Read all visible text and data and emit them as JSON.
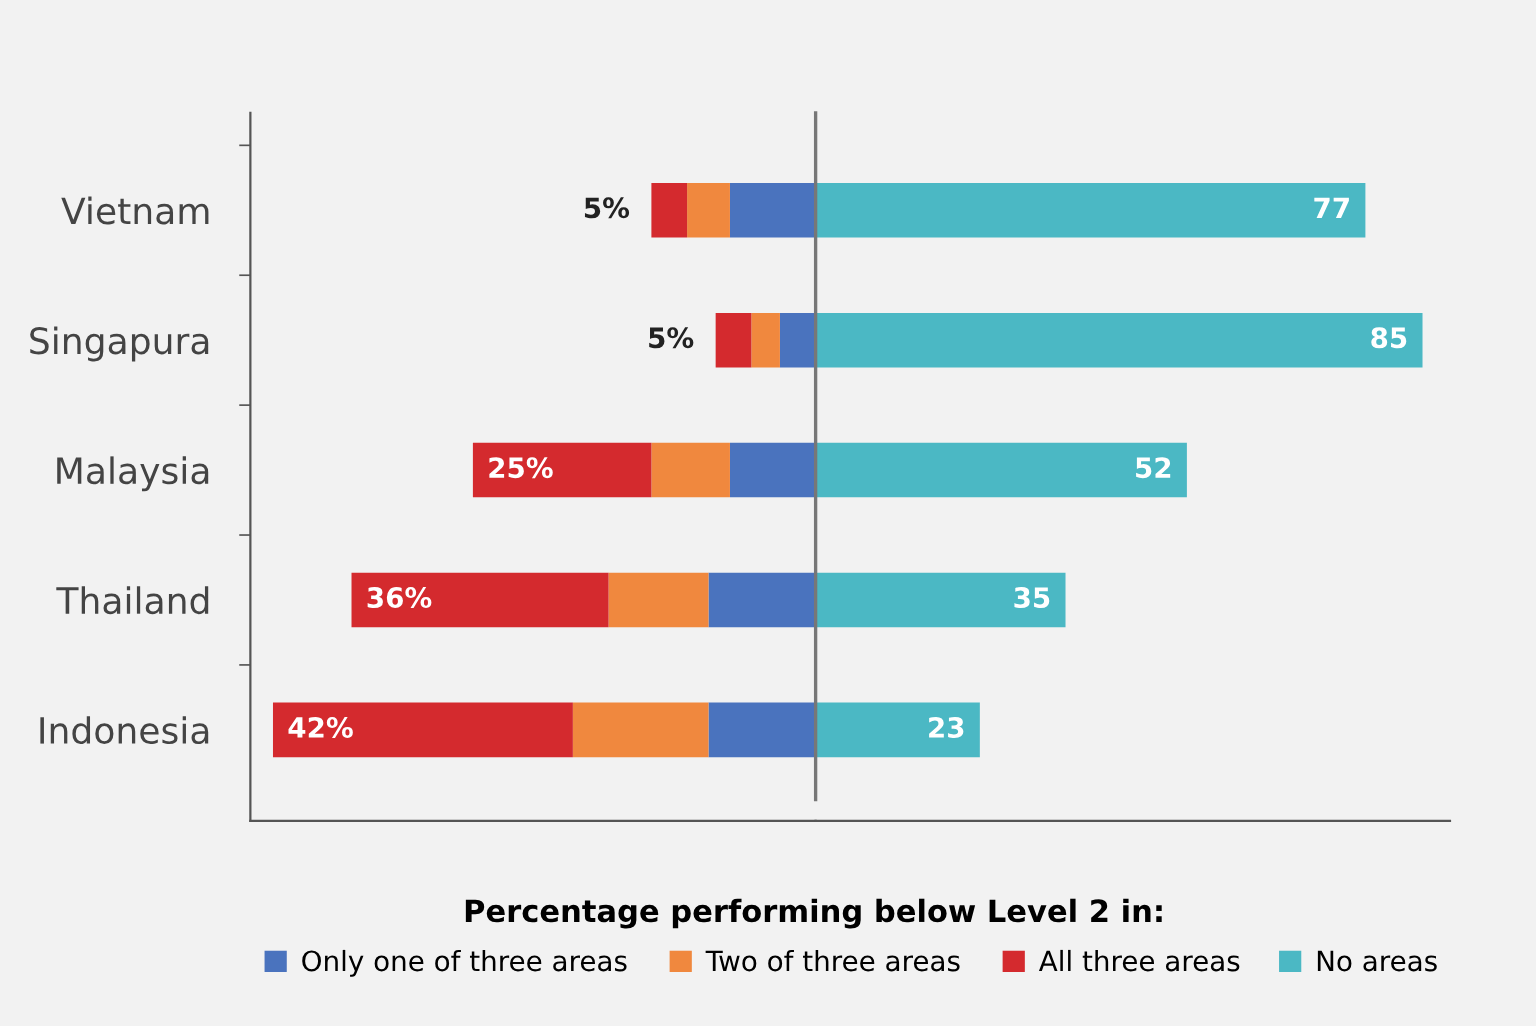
{
  "chart_data": [
    {
      "type": "bar",
      "orientation": "horizontal",
      "stacked": true,
      "categories": [
        "Vietnam",
        "Singapura",
        "Malaysia",
        "Thailand",
        "Indonesia"
      ],
      "legend_title": "Percentage performing below Level 2 in:",
      "series": [
        {
          "name": "Only one of three areas",
          "color": "#4a73be",
          "values": [
            12,
            5,
            12,
            15,
            15
          ]
        },
        {
          "name": "Two of three areas",
          "color": "#f0883e",
          "values": [
            6,
            4,
            11,
            14,
            19
          ]
        },
        {
          "name": "All three areas",
          "color": "#d42a2e",
          "values": [
            5,
            5,
            25,
            36,
            42
          ],
          "value_labels": [
            "5%",
            "5%",
            "25%",
            "36%",
            "42%"
          ]
        }
      ],
      "tick_labels": "y",
      "legend": "bottom"
    },
    {
      "type": "bar",
      "orientation": "horizontal",
      "categories": [
        null,
        null,
        null,
        null,
        null
      ],
      "series": [
        {
          "name": "No areas",
          "color": "#4bb8c4",
          "values": [
            77,
            85,
            52,
            35,
            23
          ],
          "value_labels": [
            "77",
            "85",
            "52",
            "35",
            "23"
          ]
        }
      ],
      "ref_lines": [
        {
          "axis": "x",
          "value": 0,
          "color": "#777777"
        }
      ],
      "tick_labels": false,
      "legend": "bottom"
    }
  ]
}
